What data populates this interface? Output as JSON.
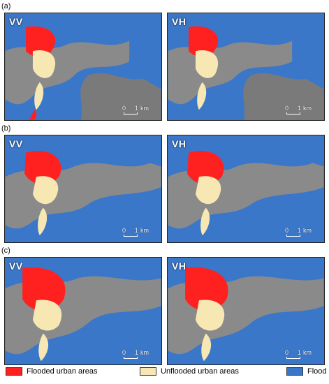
{
  "figure": {
    "rows": [
      {
        "label": "(a)",
        "panels": [
          {
            "pol": "VV"
          },
          {
            "pol": "VH"
          }
        ]
      },
      {
        "label": "(b)",
        "panels": [
          {
            "pol": "VV"
          },
          {
            "pol": "VH"
          }
        ]
      },
      {
        "label": "(c)",
        "panels": [
          {
            "pol": "VV"
          },
          {
            "pol": "VH"
          }
        ]
      }
    ],
    "scalebar": {
      "zero": "0",
      "one": "1",
      "unit": "km"
    }
  },
  "legend": {
    "flooded": {
      "label": "Flooded urban areas",
      "color": "#ff2020"
    },
    "unflooded": {
      "label": "Unflooded urban areas",
      "color": "#f6e7b3"
    },
    "flood": {
      "label": "Flood",
      "color": "#3b77c9"
    }
  }
}
